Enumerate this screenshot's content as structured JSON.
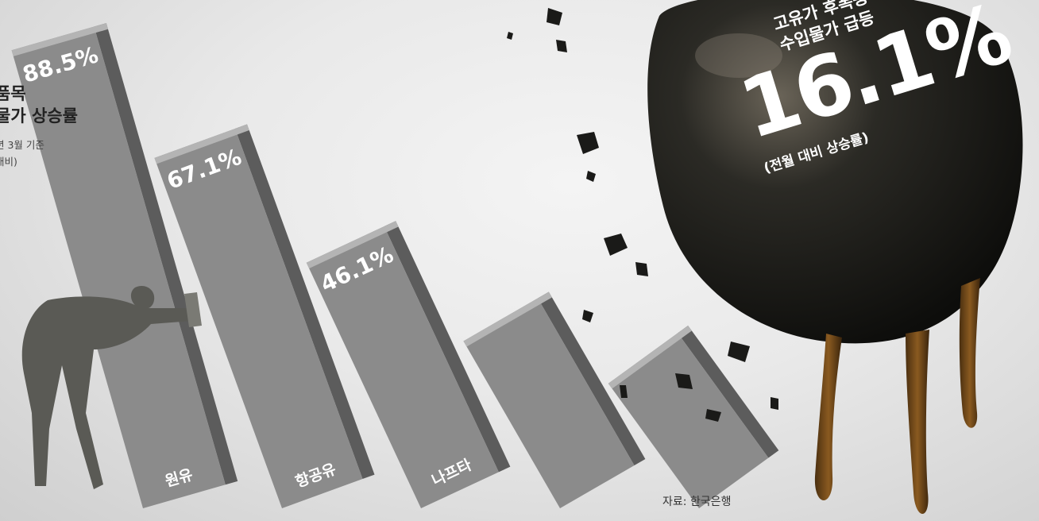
{
  "chart_data": {
    "type": "bar",
    "title_lines": [
      "품목",
      "물가 상승률"
    ],
    "subtitle_lines": [
      "년 3월 기준",
      "대비)"
    ],
    "categories": [
      "원유",
      "항공유",
      "나프타",
      "",
      ""
    ],
    "values": [
      88.5,
      67.1,
      46.1,
      null,
      null
    ],
    "value_labels": [
      "88.5%",
      "67.1%",
      "46.1%",
      "",
      ""
    ],
    "source": "자료: 한국은행",
    "colors": {
      "bar": "#8b8b8b",
      "bar_top": "#b4b4b4",
      "bar_side": "#5c5c5c"
    }
  },
  "headline": {
    "lines": [
      "고유가 후폭풍",
      "수입물가 급등"
    ],
    "value": "16.1%",
    "note": "(전월 대비 상승률)"
  }
}
